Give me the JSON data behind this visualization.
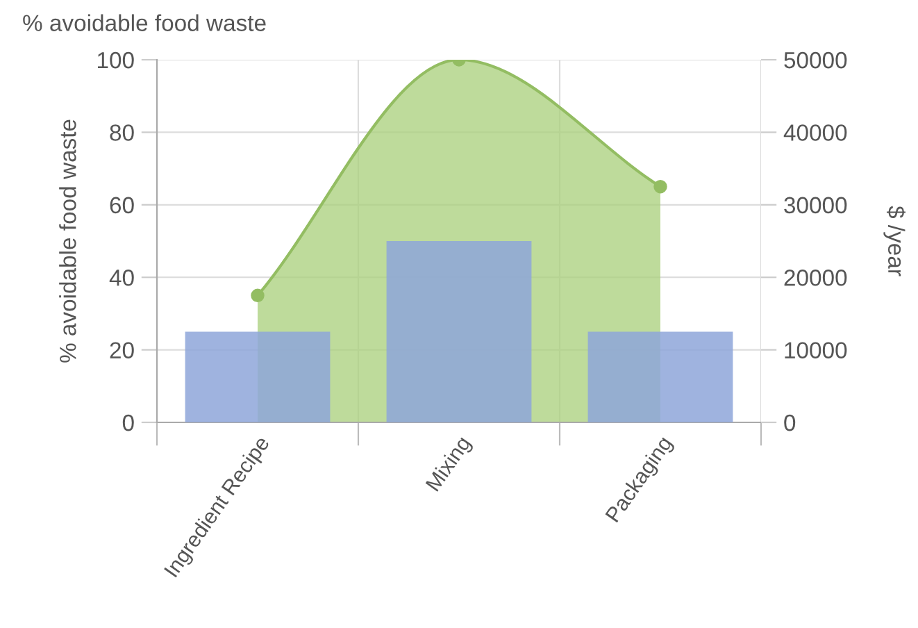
{
  "chart_data": {
    "type": "bar",
    "title": "% avoidable food waste",
    "ylabel": "% avoidable food waste",
    "y2label": "$ /year",
    "categories": [
      "Ingredient Recipe",
      "Mixing",
      "Packaging"
    ],
    "series": [
      {
        "type": "area",
        "color": "#a8cf7a",
        "values": [
          35,
          100,
          65
        ]
      },
      {
        "axis": "y2",
        "color": "#8ea6d9",
        "values": [
          12500,
          25000,
          12500
        ]
      }
    ],
    "ylim": [
      0,
      100
    ],
    "yticks": [
      0,
      20,
      40,
      60,
      80,
      100
    ],
    "y2lim": [
      0,
      50000
    ],
    "y2ticks": [
      0,
      10000,
      20000,
      30000,
      40000,
      50000
    ],
    "grid": true,
    "marker": "circle"
  }
}
